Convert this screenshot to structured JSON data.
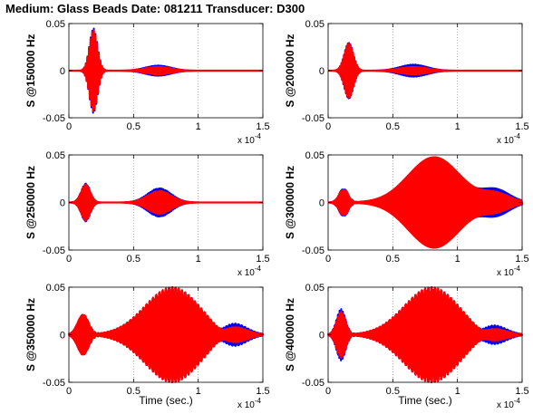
{
  "figure": {
    "title": "Medium: Glass Beads Date: 081211 Transducer: D300",
    "x_exponent_label": "x 10",
    "x_exponent": "-4"
  },
  "chart_data": [
    {
      "type": "line",
      "ylabel": "S @150000 Hz",
      "xlabel": "",
      "xlim": [
        0,
        1.5
      ],
      "ylim": [
        -0.05,
        0.05
      ],
      "xticks": [
        "0",
        "0.5",
        "1",
        "1.5"
      ],
      "yticks": [
        "0.05",
        "0",
        "-0.05"
      ],
      "x_scale": "x 10^-4",
      "grid": "vertical dotted",
      "series": [
        {
          "color": "#0000ff",
          "bursts": [
            {
              "center": 0.19,
              "width": 0.045,
              "amp": 0.045,
              "freq": 8
            },
            {
              "center": 0.69,
              "width": 0.14,
              "amp": 0.0055,
              "freq": 13
            }
          ]
        },
        {
          "color": "#ff0000",
          "bursts": [
            {
              "center": 0.19,
              "width": 0.045,
              "amp": 0.043,
              "freq": 8
            },
            {
              "center": 0.69,
              "width": 0.14,
              "amp": 0.004,
              "freq": 13
            }
          ]
        }
      ]
    },
    {
      "type": "line",
      "ylabel": "S @200000 Hz",
      "xlabel": "",
      "xlim": [
        0,
        1.5
      ],
      "ylim": [
        -0.05,
        0.05
      ],
      "xticks": [
        "0",
        "0.5",
        "1",
        "1.5"
      ],
      "yticks": [
        "0.05",
        "0",
        "-0.05"
      ],
      "x_scale": "x 10^-4",
      "grid": "vertical dotted",
      "series": [
        {
          "color": "#0000ff",
          "bursts": [
            {
              "center": 0.16,
              "width": 0.05,
              "amp": 0.031,
              "freq": 10
            },
            {
              "center": 0.66,
              "width": 0.15,
              "amp": 0.0065,
              "freq": 15
            }
          ]
        },
        {
          "color": "#ff0000",
          "bursts": [
            {
              "center": 0.16,
              "width": 0.05,
              "amp": 0.03,
              "freq": 10
            },
            {
              "center": 0.66,
              "width": 0.15,
              "amp": 0.004,
              "freq": 15
            }
          ]
        }
      ]
    },
    {
      "type": "line",
      "ylabel": "S @250000 Hz",
      "xlabel": "",
      "xlim": [
        0,
        1.5
      ],
      "ylim": [
        -0.05,
        0.05
      ],
      "xticks": [
        "0",
        "0.5",
        "1",
        "1.5"
      ],
      "yticks": [
        "0.05",
        "0",
        "-0.05"
      ],
      "x_scale": "x 10^-4",
      "grid": "vertical dotted",
      "series": [
        {
          "color": "#0000ff",
          "bursts": [
            {
              "center": 0.13,
              "width": 0.05,
              "amp": 0.02,
              "freq": 13
            },
            {
              "center": 0.7,
              "width": 0.13,
              "amp": 0.015,
              "freq": 18
            }
          ]
        },
        {
          "color": "#ff0000",
          "bursts": [
            {
              "center": 0.13,
              "width": 0.05,
              "amp": 0.019,
              "freq": 13
            },
            {
              "center": 0.7,
              "width": 0.13,
              "amp": 0.012,
              "freq": 18
            }
          ]
        }
      ]
    },
    {
      "type": "line",
      "ylabel": "S @300000 Hz",
      "xlabel": "",
      "xlim": [
        0,
        1.5
      ],
      "ylim": [
        -0.05,
        0.05
      ],
      "xticks": [
        "0",
        "0.5",
        "1",
        "1.5"
      ],
      "yticks": [
        "0.05",
        "0",
        "-0.05"
      ],
      "x_scale": "x 10^-4",
      "grid": "vertical dotted",
      "series": [
        {
          "color": "#0000ff",
          "bursts": [
            {
              "center": 0.12,
              "width": 0.05,
              "amp": 0.015,
              "freq": 17
            },
            {
              "center": 0.82,
              "width": 0.28,
              "amp": 0.045,
              "freq": 20
            },
            {
              "center": 1.3,
              "width": 0.15,
              "amp": 0.013,
              "freq": 20
            }
          ]
        },
        {
          "color": "#ff0000",
          "bursts": [
            {
              "center": 0.12,
              "width": 0.05,
              "amp": 0.014,
              "freq": 17
            },
            {
              "center": 0.82,
              "width": 0.28,
              "amp": 0.05,
              "freq": 20
            },
            {
              "center": 1.3,
              "width": 0.15,
              "amp": 0.009,
              "freq": 20
            }
          ]
        }
      ]
    },
    {
      "type": "line",
      "ylabel": "S @350000 Hz",
      "xlabel": "Time (sec.)",
      "xlim": [
        0,
        1.5
      ],
      "ylim": [
        -0.05,
        0.05
      ],
      "xticks": [
        "0",
        "0.5",
        "1",
        "1.5"
      ],
      "yticks": [
        "0.05",
        "0",
        "-0.05"
      ],
      "x_scale": "x 10^-4",
      "grid": "vertical dotted",
      "series": [
        {
          "color": "#0000ff",
          "bursts": [
            {
              "center": 0.11,
              "width": 0.06,
              "amp": 0.022,
              "freq": 20
            },
            {
              "center": 0.8,
              "width": 0.3,
              "amp": 0.05,
              "freq": 24
            },
            {
              "center": 1.26,
              "width": 0.15,
              "amp": 0.015,
              "freq": 24
            }
          ]
        },
        {
          "color": "#ff0000",
          "bursts": [
            {
              "center": 0.11,
              "width": 0.06,
              "amp": 0.022,
              "freq": 20
            },
            {
              "center": 0.8,
              "width": 0.3,
              "amp": 0.05,
              "freq": 24
            },
            {
              "center": 1.26,
              "width": 0.15,
              "amp": 0.011,
              "freq": 24
            }
          ]
        }
      ]
    },
    {
      "type": "line",
      "ylabel": "S @400000 Hz",
      "xlabel": "Time (sec.)",
      "xlim": [
        0,
        1.5
      ],
      "ylim": [
        -0.05,
        0.05
      ],
      "xticks": [
        "0",
        "0.5",
        "1",
        "1.5"
      ],
      "yticks": [
        "0.05",
        "0",
        "-0.05"
      ],
      "x_scale": "x 10^-4",
      "grid": "vertical dotted",
      "series": [
        {
          "color": "#0000ff",
          "bursts": [
            {
              "center": 0.1,
              "width": 0.05,
              "amp": 0.027,
              "freq": 23
            },
            {
              "center": 0.8,
              "width": 0.3,
              "amp": 0.05,
              "freq": 26
            },
            {
              "center": 1.26,
              "width": 0.15,
              "amp": 0.013,
              "freq": 26
            }
          ]
        },
        {
          "color": "#ff0000",
          "bursts": [
            {
              "center": 0.1,
              "width": 0.05,
              "amp": 0.024,
              "freq": 23
            },
            {
              "center": 0.8,
              "width": 0.3,
              "amp": 0.05,
              "freq": 26
            },
            {
              "center": 1.26,
              "width": 0.15,
              "amp": 0.009,
              "freq": 26
            }
          ]
        }
      ]
    }
  ]
}
